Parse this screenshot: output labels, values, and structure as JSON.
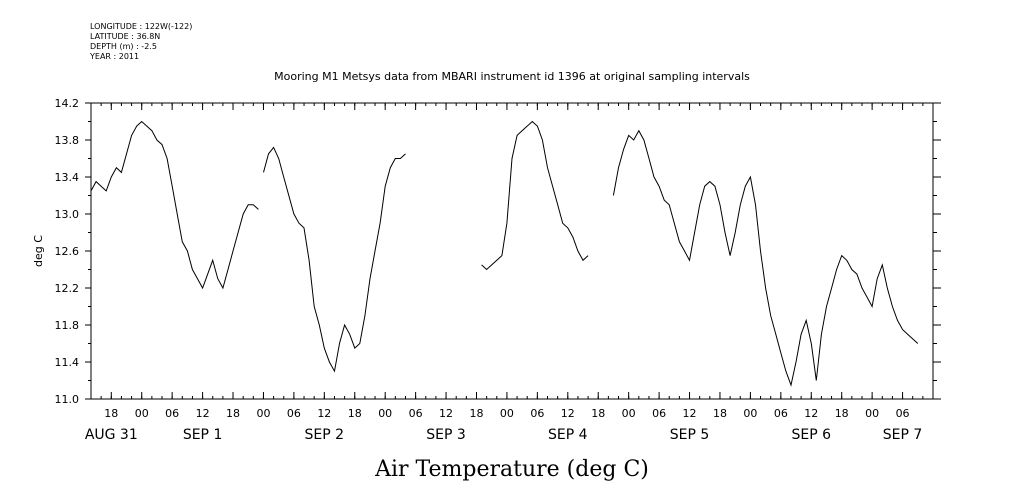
{
  "header": {
    "longitude": "LONGITUDE : 122W(-122)",
    "latitude": "LATITUDE : 36.8N",
    "depth": "DEPTH (m) : -2.5",
    "year": "YEAR : 2011"
  },
  "chart_data": {
    "type": "line",
    "title": "Mooring M1 Metsys data from MBARI instrument id 1396 at original sampling intervals",
    "xlabel": "Air Temperature (deg C)",
    "ylabel": "deg C",
    "ylim": [
      11.0,
      14.2
    ],
    "yticks": [
      "11.0",
      "11.4",
      "11.8",
      "12.2",
      "12.6",
      "13.0",
      "13.4",
      "13.8",
      "14.2"
    ],
    "xlim_hours": [
      14,
      180
    ],
    "x_unit": "hours from 2011-08-31 00:00",
    "hour_ticks": [
      {
        "h": 18,
        "label": "18"
      },
      {
        "h": 24,
        "label": "00"
      },
      {
        "h": 30,
        "label": "06"
      },
      {
        "h": 36,
        "label": "12"
      },
      {
        "h": 42,
        "label": "18"
      },
      {
        "h": 48,
        "label": "00"
      },
      {
        "h": 54,
        "label": "06"
      },
      {
        "h": 60,
        "label": "12"
      },
      {
        "h": 66,
        "label": "18"
      },
      {
        "h": 72,
        "label": "00"
      },
      {
        "h": 78,
        "label": "06"
      },
      {
        "h": 84,
        "label": "12"
      },
      {
        "h": 90,
        "label": "18"
      },
      {
        "h": 96,
        "label": "00"
      },
      {
        "h": 102,
        "label": "06"
      },
      {
        "h": 108,
        "label": "12"
      },
      {
        "h": 114,
        "label": "18"
      },
      {
        "h": 120,
        "label": "00"
      },
      {
        "h": 126,
        "label": "06"
      },
      {
        "h": 132,
        "label": "12"
      },
      {
        "h": 138,
        "label": "18"
      },
      {
        "h": 144,
        "label": "00"
      },
      {
        "h": 150,
        "label": "06"
      },
      {
        "h": 156,
        "label": "12"
      },
      {
        "h": 162,
        "label": "18"
      },
      {
        "h": 168,
        "label": "00"
      },
      {
        "h": 174,
        "label": "06"
      }
    ],
    "date_labels": [
      {
        "h": 18,
        "label": "AUG 31"
      },
      {
        "h": 36,
        "label": "SEP  1"
      },
      {
        "h": 60,
        "label": "SEP  2"
      },
      {
        "h": 84,
        "label": "SEP  3"
      },
      {
        "h": 108,
        "label": "SEP  4"
      },
      {
        "h": 132,
        "label": "SEP  5"
      },
      {
        "h": 156,
        "label": "SEP  6"
      },
      {
        "h": 174,
        "label": "SEP  7"
      }
    ],
    "segments": [
      [
        [
          14,
          13.25
        ],
        [
          15,
          13.35
        ],
        [
          16,
          13.3
        ],
        [
          17,
          13.25
        ],
        [
          18,
          13.4
        ],
        [
          19,
          13.5
        ],
        [
          20,
          13.45
        ],
        [
          21,
          13.65
        ],
        [
          22,
          13.85
        ],
        [
          23,
          13.95
        ],
        [
          24,
          14.0
        ],
        [
          25,
          13.95
        ],
        [
          26,
          13.9
        ],
        [
          27,
          13.8
        ],
        [
          28,
          13.75
        ],
        [
          29,
          13.6
        ],
        [
          30,
          13.3
        ],
        [
          31,
          13.0
        ],
        [
          32,
          12.7
        ],
        [
          33,
          12.6
        ],
        [
          34,
          12.4
        ],
        [
          35,
          12.3
        ],
        [
          36,
          12.2
        ],
        [
          37,
          12.35
        ],
        [
          38,
          12.5
        ],
        [
          39,
          12.3
        ],
        [
          40,
          12.2
        ],
        [
          41,
          12.4
        ],
        [
          42,
          12.6
        ],
        [
          43,
          12.8
        ],
        [
          44,
          13.0
        ],
        [
          45,
          13.1
        ],
        [
          46,
          13.1
        ],
        [
          47,
          13.05
        ]
      ],
      [
        [
          48,
          13.45
        ],
        [
          49,
          13.65
        ],
        [
          50,
          13.72
        ],
        [
          51,
          13.6
        ],
        [
          52,
          13.4
        ],
        [
          53,
          13.2
        ],
        [
          54,
          13.0
        ],
        [
          55,
          12.9
        ],
        [
          56,
          12.85
        ],
        [
          57,
          12.5
        ],
        [
          58,
          12.0
        ],
        [
          59,
          11.8
        ],
        [
          60,
          11.55
        ],
        [
          61,
          11.4
        ],
        [
          62,
          11.3
        ],
        [
          63,
          11.6
        ],
        [
          64,
          11.8
        ],
        [
          65,
          11.7
        ],
        [
          66,
          11.55
        ],
        [
          67,
          11.6
        ],
        [
          68,
          11.9
        ],
        [
          69,
          12.3
        ],
        [
          70,
          12.6
        ],
        [
          71,
          12.9
        ],
        [
          72,
          13.3
        ],
        [
          73,
          13.5
        ],
        [
          74,
          13.6
        ],
        [
          75,
          13.6
        ],
        [
          76,
          13.65
        ]
      ],
      [
        [
          91,
          12.45
        ],
        [
          92,
          12.4
        ],
        [
          93,
          12.45
        ],
        [
          94,
          12.5
        ],
        [
          95,
          12.55
        ],
        [
          96,
          12.9
        ],
        [
          97,
          13.6
        ],
        [
          98,
          13.85
        ],
        [
          99,
          13.9
        ],
        [
          100,
          13.95
        ],
        [
          101,
          14.0
        ],
        [
          102,
          13.95
        ],
        [
          103,
          13.8
        ],
        [
          104,
          13.5
        ],
        [
          105,
          13.3
        ],
        [
          106,
          13.1
        ],
        [
          107,
          12.9
        ],
        [
          108,
          12.85
        ],
        [
          109,
          12.75
        ],
        [
          110,
          12.6
        ],
        [
          111,
          12.5
        ],
        [
          112,
          12.55
        ]
      ],
      [
        [
          117,
          13.2
        ],
        [
          118,
          13.5
        ],
        [
          119,
          13.7
        ],
        [
          120,
          13.85
        ],
        [
          121,
          13.8
        ],
        [
          122,
          13.9
        ],
        [
          123,
          13.8
        ],
        [
          124,
          13.6
        ],
        [
          125,
          13.4
        ],
        [
          126,
          13.3
        ],
        [
          127,
          13.15
        ],
        [
          128,
          13.1
        ],
        [
          129,
          12.9
        ],
        [
          130,
          12.7
        ],
        [
          131,
          12.6
        ],
        [
          132,
          12.5
        ],
        [
          133,
          12.8
        ],
        [
          134,
          13.1
        ],
        [
          135,
          13.3
        ],
        [
          136,
          13.35
        ],
        [
          137,
          13.3
        ],
        [
          138,
          13.1
        ],
        [
          139,
          12.8
        ],
        [
          140,
          12.55
        ],
        [
          141,
          12.8
        ],
        [
          142,
          13.1
        ],
        [
          143,
          13.3
        ],
        [
          144,
          13.4
        ],
        [
          145,
          13.1
        ],
        [
          146,
          12.6
        ],
        [
          147,
          12.2
        ],
        [
          148,
          11.9
        ],
        [
          149,
          11.7
        ],
        [
          150,
          11.5
        ],
        [
          151,
          11.3
        ],
        [
          152,
          11.15
        ],
        [
          153,
          11.4
        ],
        [
          154,
          11.7
        ],
        [
          155,
          11.85
        ],
        [
          156,
          11.6
        ],
        [
          157,
          11.2
        ],
        [
          158,
          11.7
        ],
        [
          159,
          12.0
        ],
        [
          160,
          12.2
        ],
        [
          161,
          12.4
        ],
        [
          162,
          12.55
        ],
        [
          163,
          12.5
        ],
        [
          164,
          12.4
        ],
        [
          165,
          12.35
        ],
        [
          166,
          12.2
        ],
        [
          167,
          12.1
        ],
        [
          168,
          12.0
        ],
        [
          169,
          12.3
        ],
        [
          170,
          12.45
        ],
        [
          171,
          12.2
        ],
        [
          172,
          12.0
        ],
        [
          173,
          11.85
        ],
        [
          174,
          11.75
        ],
        [
          175,
          11.7
        ],
        [
          176,
          11.65
        ],
        [
          177,
          11.6
        ]
      ]
    ]
  }
}
